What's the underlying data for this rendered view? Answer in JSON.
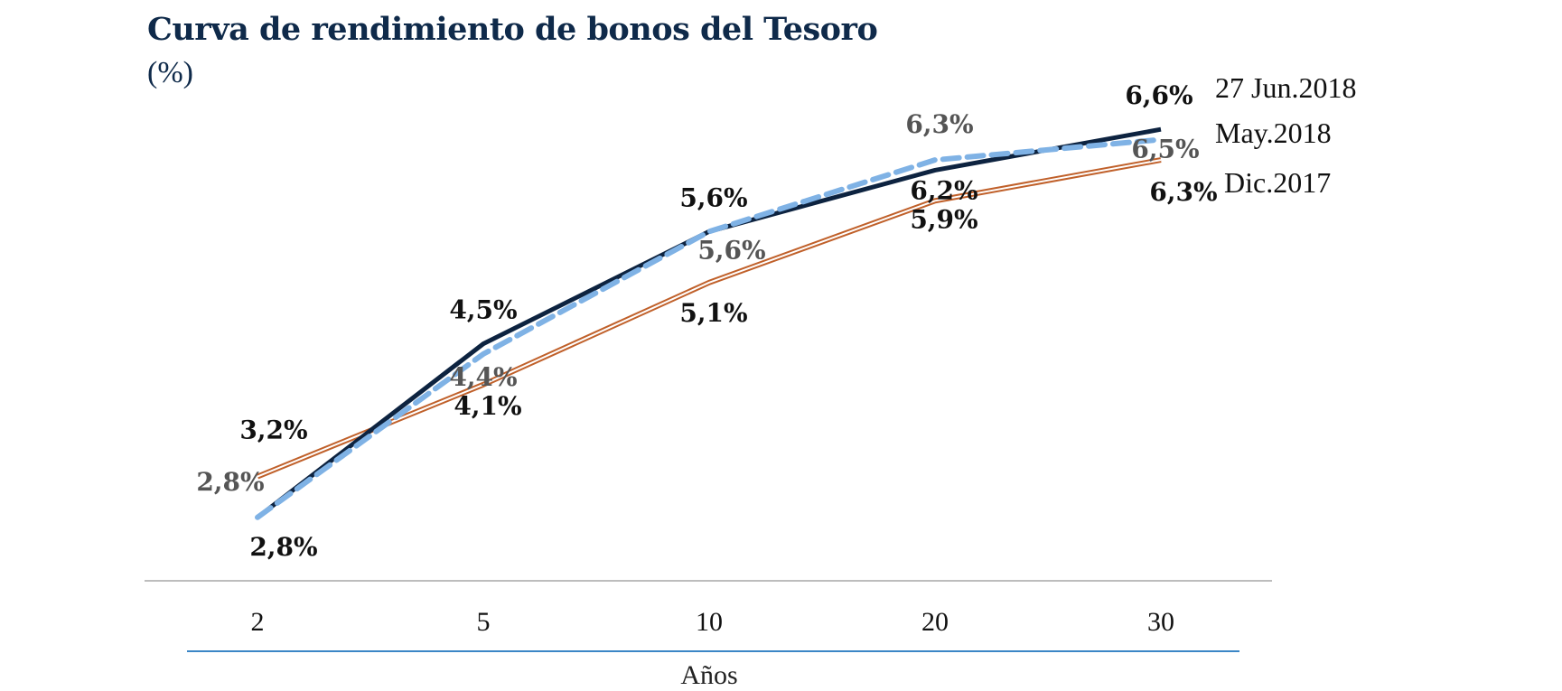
{
  "chart_data": {
    "type": "line",
    "title": "Curva de rendimiento de bonos del Tesoro",
    "subtitle": "(%)",
    "xlabel": "Años",
    "ylabel": "",
    "categories": [
      "2",
      "5",
      "10",
      "20",
      "30"
    ],
    "ylim": [
      2.4,
      7.0
    ],
    "grid": false,
    "legend_position": "right of line ends",
    "series": [
      {
        "name": "27 Jun.2018",
        "values": [
          2.8,
          4.5,
          5.6,
          6.2,
          6.6
        ],
        "labels": [
          "2,8%",
          "4,5%",
          "5,6%",
          "6,2%",
          "6,6%"
        ],
        "color": "#0d2340",
        "style": "solid"
      },
      {
        "name": "May.2018",
        "values": [
          2.8,
          4.4,
          5.6,
          6.3,
          6.5
        ],
        "labels": [
          "2,8%",
          "4,4%",
          "5,6%",
          "6,3%",
          "6,5%"
        ],
        "color": "#7fb2e5",
        "style": "dashed"
      },
      {
        "name": "Dic.2017",
        "values": [
          3.2,
          4.1,
          5.1,
          5.9,
          6.3
        ],
        "labels": [
          "3,2%",
          "4,1%",
          "5,1%",
          "5,9%",
          "6,3%"
        ],
        "color": "#c0602a",
        "style": "double"
      }
    ]
  }
}
